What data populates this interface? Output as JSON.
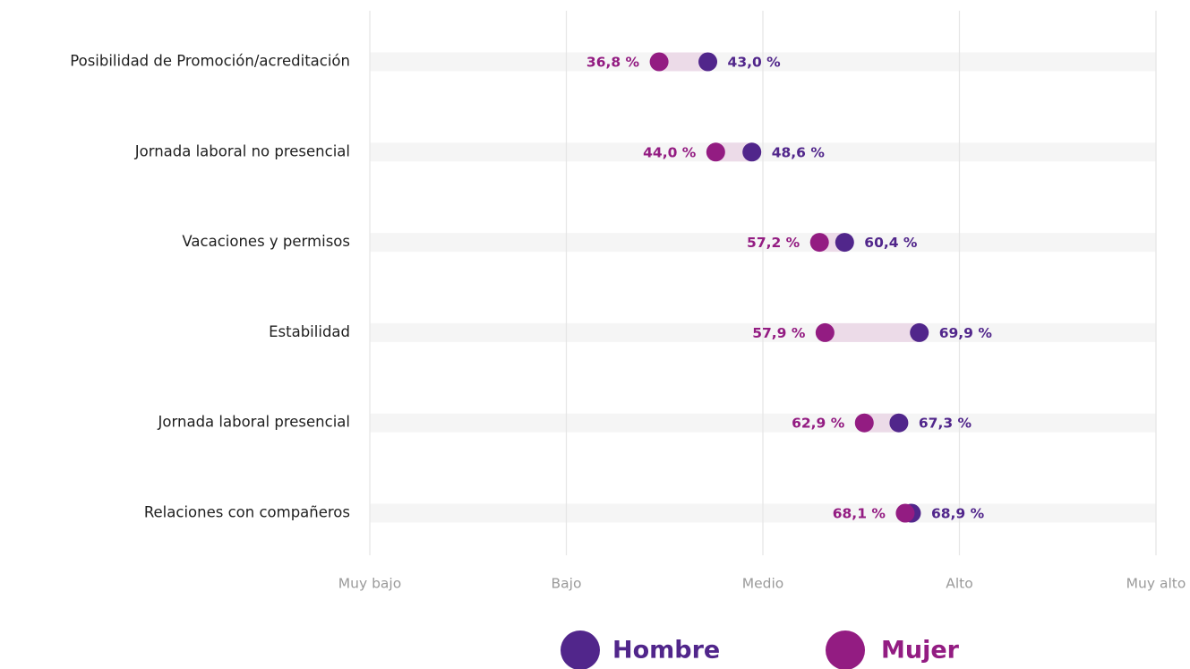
{
  "colors": {
    "hombre": "#51268b",
    "mujer": "#931c82",
    "band": "#f5f5f5",
    "connector": "#ecdbe8",
    "grid": "#e6e6e6",
    "tick_text": "#9a9a9a",
    "category_text": "#1f1f1f"
  },
  "chart_data": {
    "type": "dumbbell",
    "x_scale": "percent",
    "xlim": [
      0,
      100
    ],
    "grid": true,
    "legend_position": "bottom-center",
    "x_ticks": [
      {
        "label": "Muy bajo",
        "value": 0
      },
      {
        "label": "Bajo",
        "value": 25
      },
      {
        "label": "Medio",
        "value": 50
      },
      {
        "label": "Alto",
        "value": 75
      },
      {
        "label": "Muy alto",
        "value": 100
      }
    ],
    "categories": [
      "Posibilidad de Promoción/acreditación",
      "Jornada laboral no presencial",
      "Vacaciones y permisos",
      "Estabilidad",
      "Jornada laboral presencial",
      "Relaciones con compañeros"
    ],
    "series": [
      {
        "name": "Hombre",
        "color_key": "hombre",
        "values": [
          43.0,
          48.6,
          60.4,
          69.9,
          67.3,
          68.9
        ],
        "labels": [
          "43,0 %",
          "48,6 %",
          "60,4 %",
          "69,9 %",
          "67,3 %",
          "68,9 %"
        ]
      },
      {
        "name": "Mujer",
        "color_key": "mujer",
        "values": [
          36.8,
          44.0,
          57.2,
          57.9,
          62.9,
          68.1
        ],
        "labels": [
          "36,8 %",
          "44,0 %",
          "57,2 %",
          "57,9 %",
          "62,9 %",
          "68,1 %"
        ]
      }
    ],
    "legend": [
      {
        "label": "Hombre",
        "color_key": "hombre"
      },
      {
        "label": "Mujer",
        "color_key": "mujer"
      }
    ]
  }
}
